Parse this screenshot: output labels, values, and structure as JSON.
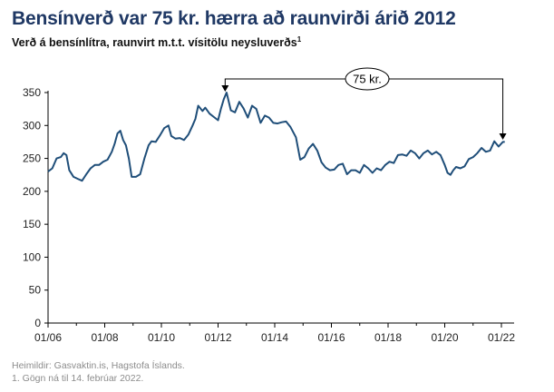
{
  "title": "Bensínverð var 75 kr. hærra að raunvirði árið 2012",
  "subtitle": "Verð á bensínlítra, raunvirt m.t.t. vísitölu neysluverðs",
  "subtitle_sup": "1",
  "footer": {
    "sources": "Heimildir: Gasvaktin.is, Hagstofa Íslands.",
    "note": "1. Gögn ná til 14. febrúar 2022."
  },
  "chart_data": {
    "type": "line",
    "x_ticks": [
      "01/06",
      "01/08",
      "01/10",
      "01/12",
      "01/14",
      "01/16",
      "01/18",
      "01/20",
      "01/22"
    ],
    "y_ticks": [
      "0",
      "50",
      "100",
      "150",
      "200",
      "250",
      "300",
      "350"
    ],
    "ylim": [
      0,
      350
    ],
    "xlim": [
      2006.0,
      2022.2
    ],
    "grid": false,
    "line_color": "#1f4e79",
    "annotation": {
      "label": "75 kr.",
      "from_x": 2012.25,
      "to_x": 2022.05
    },
    "series": [
      {
        "x": [
          2006.0,
          2006.15,
          2006.3,
          2006.45,
          2006.55,
          2006.65,
          2006.75,
          2006.9,
          2007.05,
          2007.2,
          2007.35,
          2007.5,
          2007.65,
          2007.8,
          2007.95,
          2008.1,
          2008.25,
          2008.35,
          2008.45,
          2008.55,
          2008.65,
          2008.75,
          2008.85,
          2008.95,
          2009.1,
          2009.25,
          2009.4,
          2009.55,
          2009.65,
          2009.8,
          2009.95,
          2010.1,
          2010.25,
          2010.35,
          2010.5,
          2010.65,
          2010.8,
          2010.95,
          2011.1,
          2011.2,
          2011.3,
          2011.45,
          2011.55,
          2011.7,
          2011.85,
          2012.0,
          2012.1,
          2012.2,
          2012.3,
          2012.45,
          2012.6,
          2012.75,
          2012.9,
          2013.05,
          2013.2,
          2013.35,
          2013.5,
          2013.65,
          2013.8,
          2013.95,
          2014.1,
          2014.25,
          2014.4,
          2014.55,
          2014.75,
          2014.9,
          2015.05,
          2015.2,
          2015.35,
          2015.5,
          2015.65,
          2015.8,
          2015.95,
          2016.1,
          2016.25,
          2016.4,
          2016.55,
          2016.7,
          2016.85,
          2017.0,
          2017.15,
          2017.3,
          2017.45,
          2017.6,
          2017.75,
          2017.9,
          2018.05,
          2018.2,
          2018.35,
          2018.5,
          2018.65,
          2018.8,
          2018.95,
          2019.1,
          2019.25,
          2019.4,
          2019.55,
          2019.7,
          2019.85,
          2020.0,
          2020.1,
          2020.2,
          2020.3,
          2020.4,
          2020.55,
          2020.7,
          2020.85,
          2021.0,
          2021.15,
          2021.3,
          2021.45,
          2021.6,
          2021.75,
          2021.9,
          2022.05,
          2022.12
        ],
        "values": [
          230,
          235,
          250,
          252,
          258,
          255,
          232,
          222,
          219,
          216,
          226,
          235,
          240,
          240,
          245,
          248,
          260,
          272,
          288,
          292,
          278,
          270,
          250,
          222,
          222,
          226,
          250,
          270,
          276,
          275,
          285,
          296,
          300,
          284,
          280,
          281,
          278,
          286,
          300,
          310,
          330,
          322,
          327,
          318,
          313,
          308,
          325,
          340,
          350,
          323,
          320,
          336,
          326,
          312,
          330,
          325,
          304,
          315,
          312,
          304,
          303,
          305,
          306,
          298,
          282,
          248,
          252,
          265,
          272,
          262,
          244,
          236,
          232,
          233,
          240,
          242,
          226,
          232,
          232,
          228,
          240,
          235,
          228,
          235,
          232,
          240,
          245,
          243,
          255,
          256,
          254,
          262,
          258,
          250,
          258,
          262,
          256,
          260,
          255,
          240,
          228,
          225,
          232,
          237,
          235,
          238,
          249,
          252,
          258,
          266,
          260,
          262,
          276,
          268,
          275,
          275
        ]
      }
    ]
  }
}
